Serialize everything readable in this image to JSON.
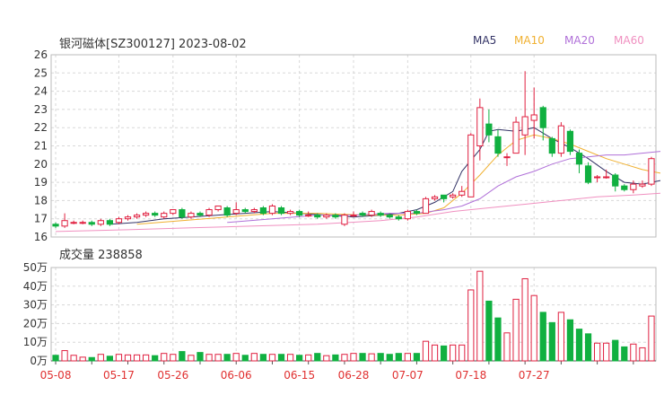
{
  "chart_data": [
    {
      "type": "candlestick",
      "title": "银河磁体[SZ300127] 2023-08-02",
      "ylim": [
        16,
        26
      ],
      "yticks": [
        16,
        17,
        18,
        19,
        20,
        21,
        22,
        23,
        24,
        25,
        26
      ],
      "legend": [
        {
          "name": "MA5",
          "color": "#333366"
        },
        {
          "name": "MA10",
          "color": "#f0b030"
        },
        {
          "name": "MA20",
          "color": "#b070d8"
        },
        {
          "name": "MA60",
          "color": "#f090c0"
        }
      ],
      "x_ticks": [
        {
          "i": 0,
          "label": "05-08"
        },
        {
          "i": 7,
          "label": "05-17"
        },
        {
          "i": 13,
          "label": "05-26"
        },
        {
          "i": 20,
          "label": "06-06"
        },
        {
          "i": 27,
          "label": "06-15"
        },
        {
          "i": 33,
          "label": "06-28"
        },
        {
          "i": 39,
          "label": "07-07"
        },
        {
          "i": 46,
          "label": "07-18"
        },
        {
          "i": 53,
          "label": "07-27"
        }
      ],
      "candles": [
        [
          16.7,
          16.6,
          16.8,
          16.5
        ],
        [
          16.6,
          16.9,
          17.3,
          16.5
        ],
        [
          16.8,
          16.8,
          16.9,
          16.7
        ],
        [
          16.8,
          16.8,
          16.9,
          16.7
        ],
        [
          16.8,
          16.7,
          16.9,
          16.6
        ],
        [
          16.7,
          16.9,
          17.0,
          16.6
        ],
        [
          16.9,
          16.7,
          17.0,
          16.6
        ],
        [
          16.8,
          17.0,
          17.1,
          16.7
        ],
        [
          17.0,
          17.1,
          17.2,
          16.9
        ],
        [
          17.1,
          17.2,
          17.3,
          17.0
        ],
        [
          17.2,
          17.3,
          17.4,
          17.1
        ],
        [
          17.3,
          17.2,
          17.4,
          17.1
        ],
        [
          17.1,
          17.3,
          17.4,
          17.0
        ],
        [
          17.3,
          17.5,
          17.5,
          17.2
        ],
        [
          17.5,
          17.1,
          17.6,
          17.0
        ],
        [
          17.1,
          17.3,
          17.4,
          17.0
        ],
        [
          17.3,
          17.2,
          17.4,
          17.1
        ],
        [
          17.2,
          17.5,
          17.6,
          17.1
        ],
        [
          17.5,
          17.7,
          17.7,
          17.4
        ],
        [
          17.6,
          17.2,
          17.7,
          17.1
        ],
        [
          17.3,
          17.5,
          17.9,
          17.2
        ],
        [
          17.5,
          17.4,
          17.6,
          17.3
        ],
        [
          17.4,
          17.5,
          17.6,
          17.3
        ],
        [
          17.6,
          17.3,
          17.7,
          17.2
        ],
        [
          17.3,
          17.7,
          17.8,
          17.2
        ],
        [
          17.6,
          17.3,
          17.7,
          17.2
        ],
        [
          17.3,
          17.4,
          17.5,
          17.2
        ],
        [
          17.4,
          17.2,
          17.5,
          17.1
        ],
        [
          17.2,
          17.2,
          17.4,
          17.1
        ],
        [
          17.2,
          17.1,
          17.3,
          17.0
        ],
        [
          17.1,
          17.2,
          17.3,
          17.0
        ],
        [
          17.2,
          17.1,
          17.3,
          17.0
        ],
        [
          16.7,
          17.2,
          17.3,
          16.6
        ],
        [
          17.2,
          17.2,
          17.4,
          17.1
        ],
        [
          17.3,
          17.2,
          17.4,
          17.1
        ],
        [
          17.2,
          17.4,
          17.5,
          17.1
        ],
        [
          17.3,
          17.2,
          17.4,
          17.1
        ],
        [
          17.2,
          17.1,
          17.3,
          17.0
        ],
        [
          17.1,
          17.0,
          17.2,
          16.9
        ],
        [
          17.0,
          17.4,
          17.5,
          16.9
        ],
        [
          17.4,
          17.3,
          17.5,
          17.2
        ],
        [
          17.3,
          18.1,
          18.2,
          17.3
        ],
        [
          18.1,
          18.2,
          18.3,
          18.0
        ],
        [
          18.3,
          18.1,
          18.3,
          17.9
        ],
        [
          18.2,
          18.3,
          18.4,
          18.1
        ],
        [
          18.3,
          18.5,
          18.8,
          18.2
        ],
        [
          18.2,
          21.6,
          21.7,
          18.2
        ],
        [
          21.0,
          23.1,
          23.6,
          20.2
        ],
        [
          22.2,
          21.6,
          23.0,
          21.2
        ],
        [
          21.5,
          20.6,
          21.9,
          20.4
        ],
        [
          20.4,
          20.4,
          20.6,
          19.9
        ],
        [
          20.6,
          22.3,
          22.6,
          20.6
        ],
        [
          21.6,
          22.6,
          25.1,
          20.5
        ],
        [
          22.4,
          22.7,
          24.2,
          21.4
        ],
        [
          23.1,
          22.0,
          23.2,
          21.3
        ],
        [
          21.4,
          20.6,
          21.5,
          20.4
        ],
        [
          20.6,
          22.1,
          22.3,
          20.4
        ],
        [
          21.8,
          20.7,
          21.9,
          20.5
        ],
        [
          20.6,
          20.0,
          20.8,
          19.5
        ],
        [
          19.9,
          19.0,
          20.1,
          18.9
        ],
        [
          19.3,
          19.3,
          19.4,
          19.0
        ],
        [
          19.3,
          19.3,
          19.7,
          19.2
        ],
        [
          19.4,
          18.8,
          19.5,
          18.5
        ],
        [
          18.8,
          18.6,
          18.9,
          18.5
        ],
        [
          18.6,
          18.9,
          19.1,
          18.4
        ],
        [
          18.8,
          18.9,
          19.1,
          18.7
        ],
        [
          18.9,
          20.3,
          20.4,
          18.8
        ]
      ],
      "ma": {
        "MA5": [
          [
            6,
            16.7
          ],
          [
            9,
            16.8
          ],
          [
            12,
            17.0
          ],
          [
            15,
            17.1
          ],
          [
            18,
            17.2
          ],
          [
            21,
            17.3
          ],
          [
            24,
            17.4
          ],
          [
            27,
            17.3
          ],
          [
            30,
            17.2
          ],
          [
            33,
            17.1
          ],
          [
            36,
            17.2
          ],
          [
            38,
            17.3
          ],
          [
            40,
            17.5
          ],
          [
            42,
            17.9
          ],
          [
            44,
            18.5
          ],
          [
            45,
            19.6
          ],
          [
            47,
            20.8
          ],
          [
            48,
            21.8
          ],
          [
            49,
            21.9
          ],
          [
            51,
            21.8
          ],
          [
            53,
            22.0
          ],
          [
            55,
            21.4
          ],
          [
            57,
            20.9
          ],
          [
            59,
            20.3
          ],
          [
            61,
            19.6
          ],
          [
            63,
            19.0
          ],
          [
            65,
            18.9
          ],
          [
            67,
            19.1
          ]
        ],
        "MA10": [
          [
            9,
            16.7
          ],
          [
            14,
            16.9
          ],
          [
            19,
            17.1
          ],
          [
            24,
            17.3
          ],
          [
            29,
            17.3
          ],
          [
            34,
            17.2
          ],
          [
            38,
            17.2
          ],
          [
            41,
            17.3
          ],
          [
            43,
            17.6
          ],
          [
            45,
            18.4
          ],
          [
            47,
            19.4
          ],
          [
            49,
            20.5
          ],
          [
            51,
            21.3
          ],
          [
            53,
            21.6
          ],
          [
            55,
            21.4
          ],
          [
            57,
            21.1
          ],
          [
            59,
            20.7
          ],
          [
            61,
            20.3
          ],
          [
            63,
            20.0
          ],
          [
            65,
            19.7
          ],
          [
            67,
            19.5
          ]
        ],
        "MA20": [
          [
            19,
            16.8
          ],
          [
            24,
            17.0
          ],
          [
            29,
            17.2
          ],
          [
            33,
            17.2
          ],
          [
            37,
            17.3
          ],
          [
            40,
            17.3
          ],
          [
            43,
            17.5
          ],
          [
            45,
            17.7
          ],
          [
            47,
            18.1
          ],
          [
            49,
            18.8
          ],
          [
            51,
            19.3
          ],
          [
            53,
            19.6
          ],
          [
            55,
            20.0
          ],
          [
            57,
            20.3
          ],
          [
            59,
            20.4
          ],
          [
            61,
            20.5
          ],
          [
            63,
            20.5
          ],
          [
            65,
            20.6
          ],
          [
            67,
            20.7
          ]
        ],
        "MA60": [
          [
            0,
            16.3
          ],
          [
            8,
            16.4
          ],
          [
            15,
            16.5
          ],
          [
            22,
            16.6
          ],
          [
            29,
            16.7
          ],
          [
            36,
            16.9
          ],
          [
            40,
            17.1
          ],
          [
            44,
            17.4
          ],
          [
            48,
            17.6
          ],
          [
            52,
            17.8
          ],
          [
            56,
            18.0
          ],
          [
            60,
            18.2
          ],
          [
            64,
            18.3
          ],
          [
            67,
            18.4
          ]
        ]
      },
      "volume": {
        "label": "成交量",
        "last": "238858",
        "ylim": [
          0,
          50
        ],
        "yticks": [
          {
            "v": 0,
            "label": "0万"
          },
          {
            "v": 10,
            "label": "10万"
          },
          {
            "v": 20,
            "label": "20万"
          },
          {
            "v": 30,
            "label": "30万"
          },
          {
            "v": 40,
            "label": "40万"
          },
          {
            "v": 50,
            "label": "50万"
          }
        ],
        "values": [
          3,
          5.5,
          3,
          2,
          1.8,
          3.5,
          2.5,
          3.5,
          3.2,
          3.2,
          3.2,
          2.8,
          4,
          3.5,
          5,
          3,
          4.5,
          3.5,
          3.5,
          3.5,
          4,
          3,
          4,
          3.5,
          3.5,
          3.5,
          3.5,
          3,
          3.2,
          4,
          2.8,
          3.2,
          3.5,
          4,
          4,
          3.8,
          4,
          3.5,
          4,
          4,
          4,
          10.5,
          8.5,
          8,
          8.5,
          8.5,
          38,
          48,
          32,
          23,
          15,
          33,
          44,
          35,
          26,
          20.5,
          26,
          22,
          17,
          14.5,
          9.5,
          9.5,
          11,
          7.5,
          9,
          7,
          24
        ]
      }
    }
  ]
}
